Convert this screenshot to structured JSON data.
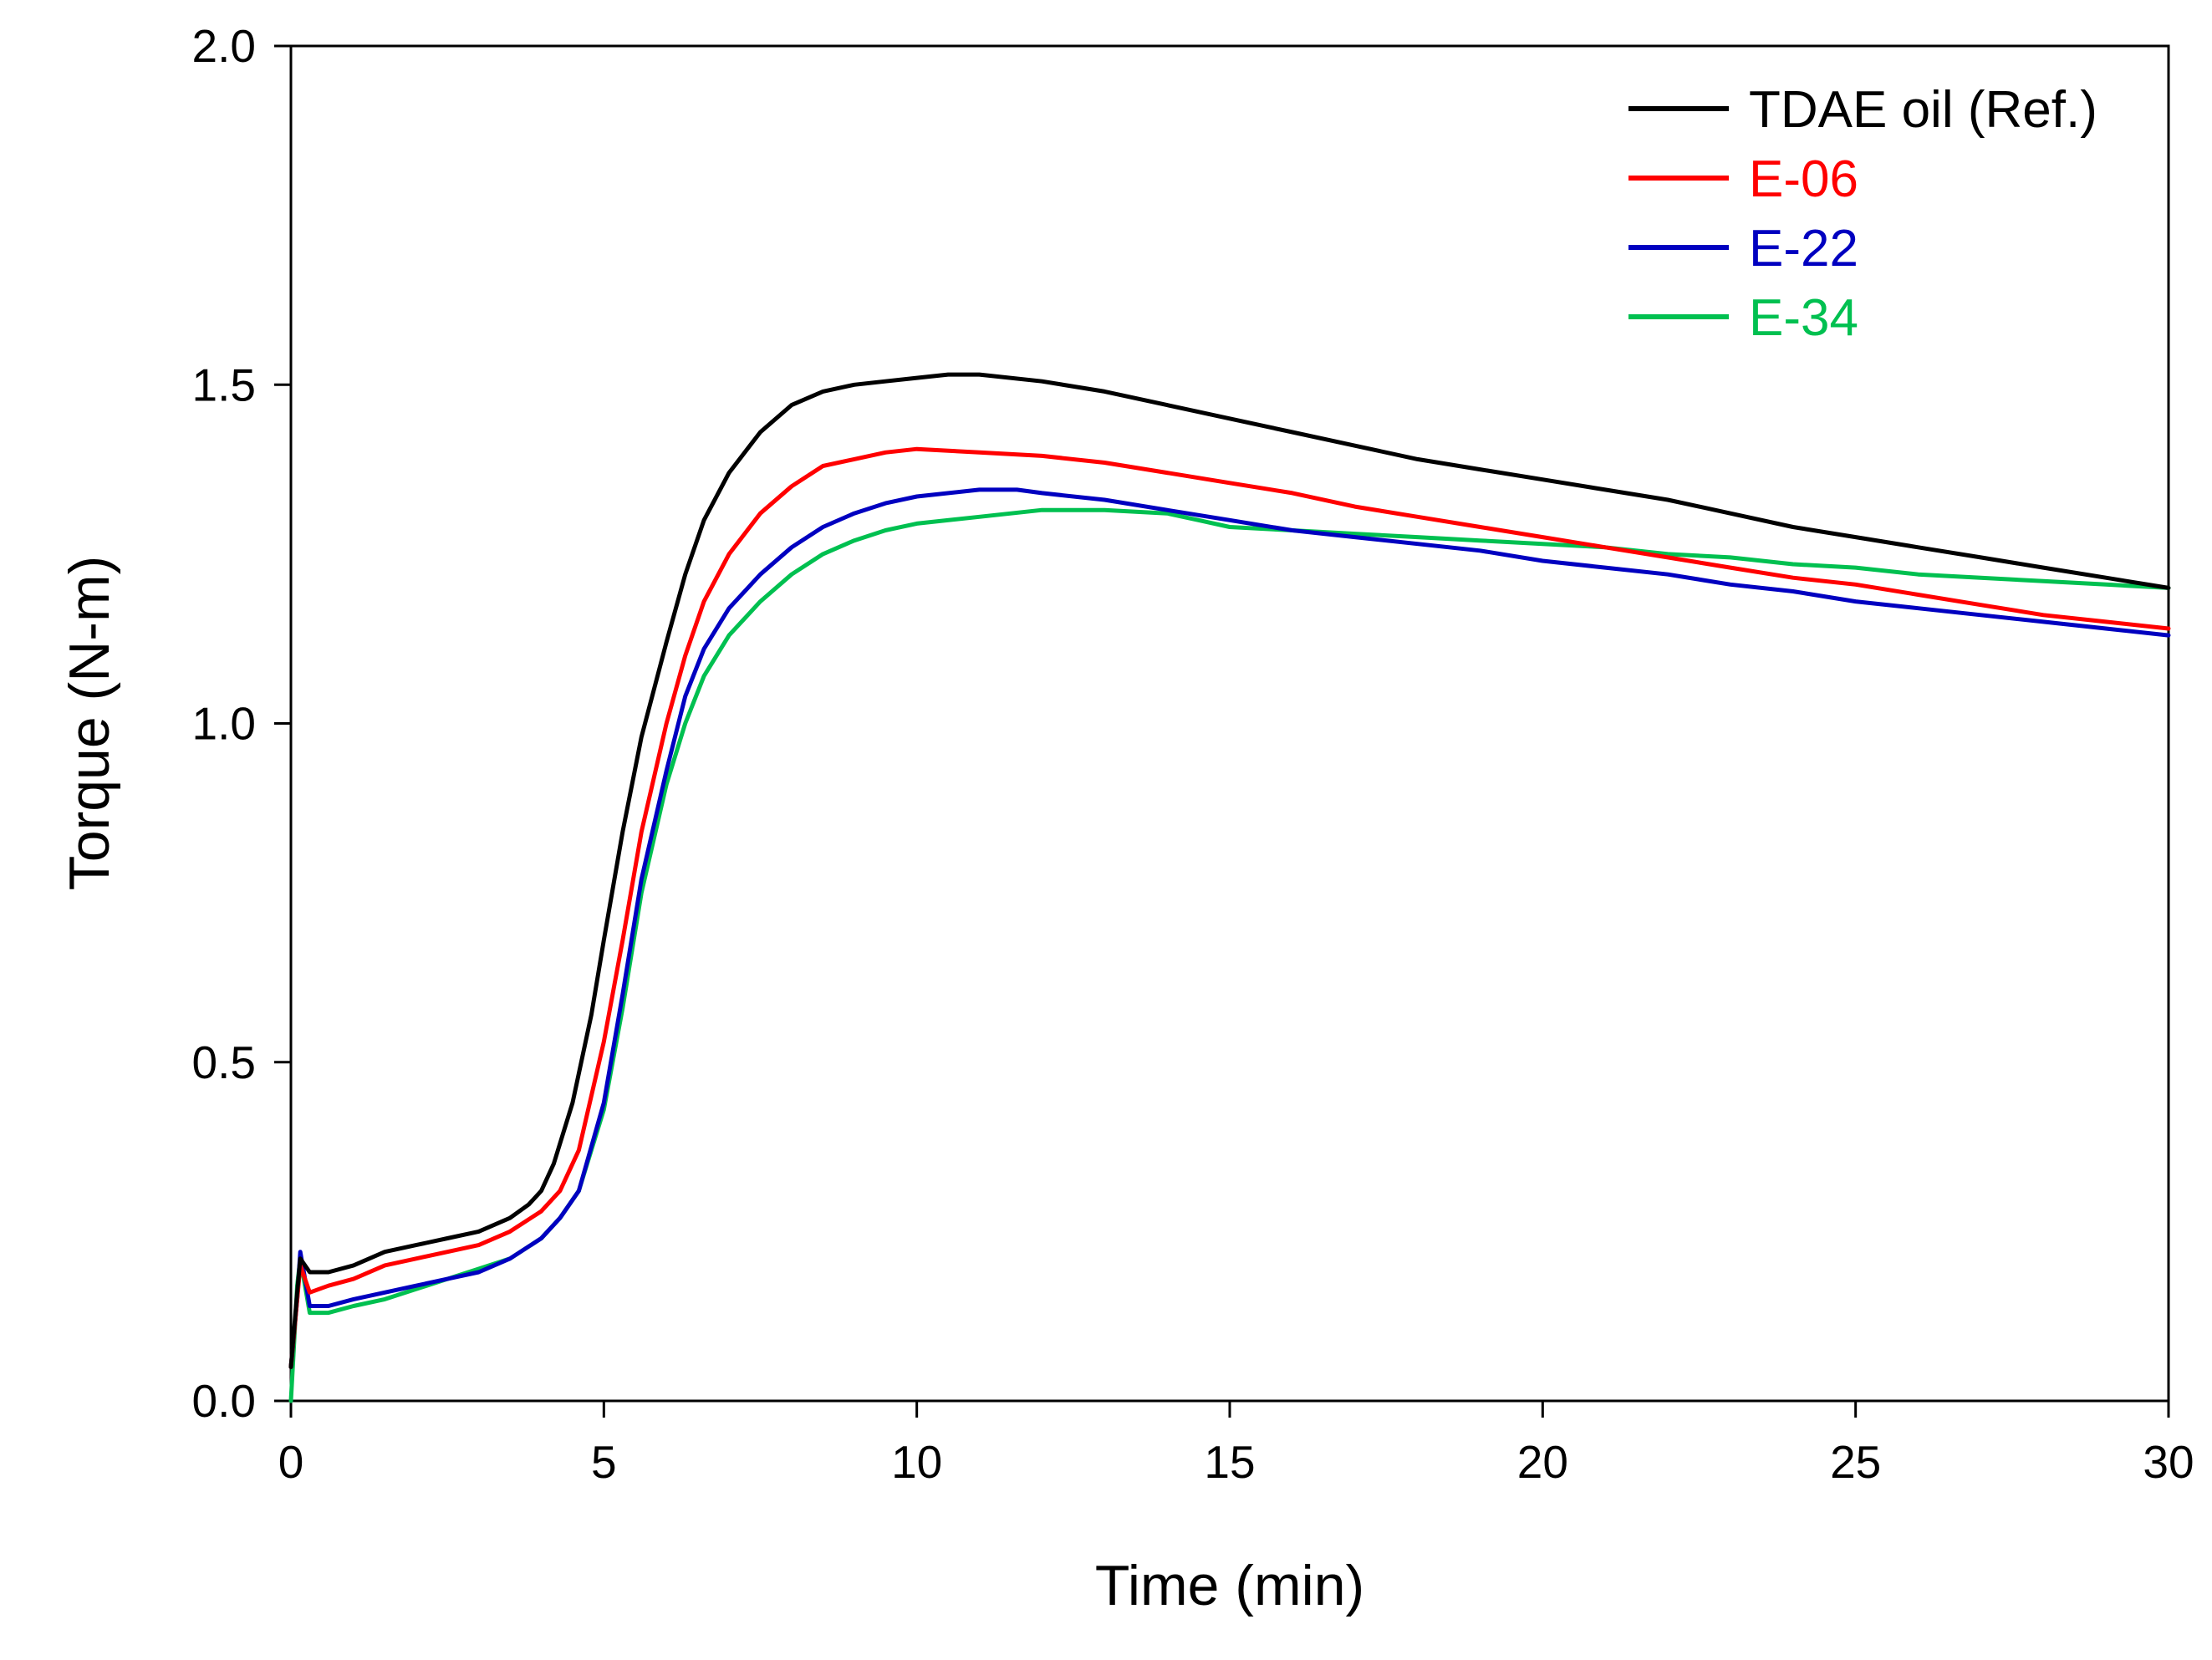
{
  "chart_data": {
    "type": "line",
    "title": "",
    "xlabel": "Time (min)",
    "ylabel": "Torque (N-m)",
    "xlim": [
      0,
      30
    ],
    "ylim": [
      0,
      2.0
    ],
    "x_ticks": [
      0,
      5,
      10,
      15,
      20,
      25,
      30
    ],
    "x_tick_labels": [
      "0",
      "5",
      "10",
      "15",
      "20",
      "25",
      "30"
    ],
    "y_ticks": [
      0,
      0.5,
      1.0,
      1.5,
      2.0
    ],
    "y_tick_labels": [
      "0.0",
      "0.5",
      "1.0",
      "1.5",
      "2.0"
    ],
    "grid": false,
    "legend_position": "top-right",
    "series": [
      {
        "name": "TDAE oil (Ref.)",
        "color": "#000000",
        "x": [
          0,
          0.1,
          0.15,
          0.3,
          0.6,
          1,
          1.5,
          2,
          2.5,
          3,
          3.5,
          3.8,
          4,
          4.2,
          4.5,
          4.8,
          5,
          5.3,
          5.6,
          6,
          6.3,
          6.6,
          7,
          7.5,
          8,
          8.5,
          9,
          9.5,
          10,
          10.5,
          11,
          12,
          13,
          14,
          15,
          16,
          17,
          18,
          19,
          20,
          21,
          22,
          23,
          24,
          25,
          26,
          27,
          28,
          29,
          30
        ],
        "y": [
          0.05,
          0.16,
          0.21,
          0.19,
          0.19,
          0.2,
          0.22,
          0.23,
          0.24,
          0.25,
          0.27,
          0.29,
          0.31,
          0.35,
          0.44,
          0.57,
          0.68,
          0.84,
          0.98,
          1.12,
          1.22,
          1.3,
          1.37,
          1.43,
          1.47,
          1.49,
          1.5,
          1.505,
          1.51,
          1.515,
          1.515,
          1.505,
          1.49,
          1.47,
          1.45,
          1.43,
          1.41,
          1.39,
          1.375,
          1.36,
          1.345,
          1.33,
          1.31,
          1.29,
          1.275,
          1.26,
          1.245,
          1.23,
          1.215,
          1.2
        ]
      },
      {
        "name": "E-06",
        "color": "#ff0000",
        "x": [
          0,
          0.1,
          0.15,
          0.3,
          0.6,
          1,
          1.5,
          2,
          2.5,
          3,
          3.5,
          4,
          4.3,
          4.6,
          5,
          5.3,
          5.6,
          6,
          6.3,
          6.6,
          7,
          7.5,
          8,
          8.5,
          9,
          9.5,
          10,
          11,
          12,
          13,
          14,
          15,
          16,
          17,
          18,
          19,
          20,
          21,
          22,
          23,
          24,
          25,
          26,
          27,
          28,
          29,
          30
        ],
        "y": [
          0.05,
          0.15,
          0.2,
          0.16,
          0.17,
          0.18,
          0.2,
          0.21,
          0.22,
          0.23,
          0.25,
          0.28,
          0.31,
          0.37,
          0.53,
          0.68,
          0.84,
          1.0,
          1.1,
          1.18,
          1.25,
          1.31,
          1.35,
          1.38,
          1.39,
          1.4,
          1.405,
          1.4,
          1.395,
          1.385,
          1.37,
          1.355,
          1.34,
          1.32,
          1.305,
          1.29,
          1.275,
          1.26,
          1.245,
          1.23,
          1.215,
          1.205,
          1.19,
          1.175,
          1.16,
          1.15,
          1.14
        ]
      },
      {
        "name": "E-22",
        "color": "#0000c0",
        "x": [
          0,
          0.1,
          0.15,
          0.3,
          0.6,
          1,
          1.5,
          2,
          2.5,
          3,
          3.5,
          4,
          4.3,
          4.6,
          5,
          5.3,
          5.6,
          6,
          6.3,
          6.6,
          7,
          7.5,
          8,
          8.5,
          9,
          9.5,
          10,
          11,
          11.6,
          12,
          13,
          14,
          15,
          16,
          17,
          18,
          19,
          20,
          21,
          22,
          23,
          24,
          25,
          26,
          27,
          28,
          29,
          30
        ],
        "y": [
          0.05,
          0.15,
          0.22,
          0.14,
          0.14,
          0.15,
          0.16,
          0.17,
          0.18,
          0.19,
          0.21,
          0.24,
          0.27,
          0.31,
          0.44,
          0.6,
          0.77,
          0.93,
          1.04,
          1.11,
          1.17,
          1.22,
          1.26,
          1.29,
          1.31,
          1.325,
          1.335,
          1.345,
          1.345,
          1.34,
          1.33,
          1.315,
          1.3,
          1.285,
          1.275,
          1.265,
          1.255,
          1.24,
          1.23,
          1.22,
          1.205,
          1.195,
          1.18,
          1.17,
          1.16,
          1.15,
          1.14,
          1.13
        ]
      },
      {
        "name": "E-34",
        "color": "#00c050",
        "x": [
          0,
          0.1,
          0.15,
          0.3,
          0.6,
          1,
          1.5,
          2,
          2.5,
          3,
          3.5,
          4,
          4.3,
          4.6,
          5,
          5.3,
          5.6,
          6,
          6.3,
          6.6,
          7,
          7.5,
          8,
          8.5,
          9,
          9.5,
          10,
          11,
          12,
          13,
          14,
          14.5,
          15,
          16,
          17,
          18,
          19,
          20,
          21,
          22,
          23,
          24,
          25,
          26,
          27,
          28,
          29,
          30
        ],
        "y": [
          0.0,
          0.17,
          0.21,
          0.13,
          0.13,
          0.14,
          0.15,
          0.165,
          0.18,
          0.195,
          0.21,
          0.24,
          0.27,
          0.31,
          0.43,
          0.58,
          0.75,
          0.91,
          1.0,
          1.07,
          1.13,
          1.18,
          1.22,
          1.25,
          1.27,
          1.285,
          1.295,
          1.305,
          1.315,
          1.315,
          1.31,
          1.3,
          1.29,
          1.285,
          1.28,
          1.275,
          1.27,
          1.265,
          1.26,
          1.25,
          1.245,
          1.235,
          1.23,
          1.22,
          1.215,
          1.21,
          1.205,
          1.2
        ]
      }
    ]
  }
}
